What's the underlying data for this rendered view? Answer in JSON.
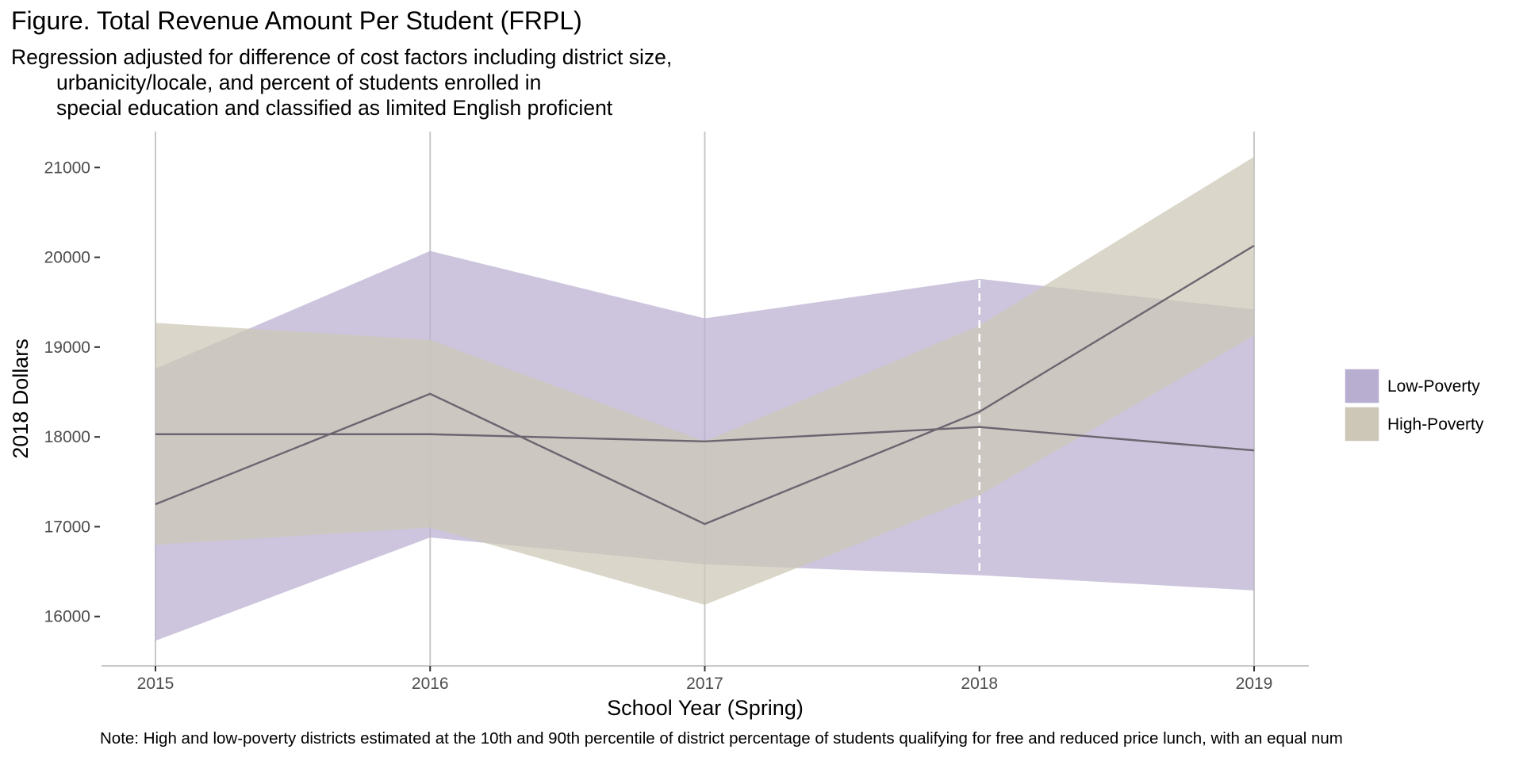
{
  "chart_data": {
    "type": "area",
    "title": "Figure. Total Revenue Amount Per Student (FRPL)",
    "subtitle": [
      "Regression adjusted for difference of cost factors including district size,",
      "urbanicity/locale, and percent of students enrolled in",
      "special education and classified as limited English proficient"
    ],
    "note": "Note: High and low-poverty districts estimated at the 10th and 90th percentile of district percentage of students qualifying for free and reduced price lunch, with an equal num",
    "xlabel": "School Year (Spring)",
    "ylabel": "2018 Dollars",
    "x": [
      2015,
      2016,
      2017,
      2018,
      2019
    ],
    "x_tick_labels": [
      "2015",
      "2016",
      "2017",
      "2018",
      "2019"
    ],
    "y_ticks": [
      16000,
      17000,
      18000,
      19000,
      20000,
      21000
    ],
    "y_tick_labels": [
      "16000",
      "17000",
      "18000",
      "19000",
      "20000",
      "21000"
    ],
    "xlim": [
      2014.8,
      2019.2
    ],
    "ylim": [
      15450,
      21400
    ],
    "vertical_gridlines": [
      2015,
      2016,
      2017,
      2019
    ],
    "dashed_reference_line": 2018,
    "legend_position": "right",
    "series": [
      {
        "name": "Low-Poverty",
        "color": "#b8aed0",
        "values": [
          18030,
          18030,
          17950,
          18110,
          17850
        ],
        "lower": [
          15730,
          16880,
          16580,
          16460,
          16290
        ],
        "upper": [
          18760,
          20070,
          19320,
          19760,
          19420
        ]
      },
      {
        "name": "High-Poverty",
        "color": "#ccc7b6",
        "values": [
          17250,
          18480,
          17030,
          18280,
          20130
        ],
        "lower": [
          16800,
          16990,
          16130,
          17350,
          19130
        ],
        "upper": [
          19270,
          19080,
          17950,
          19240,
          21120
        ]
      }
    ],
    "line_color": "#6e6470",
    "grid_color": "#c8c8c8",
    "axis_color": "#c8c8c8"
  }
}
